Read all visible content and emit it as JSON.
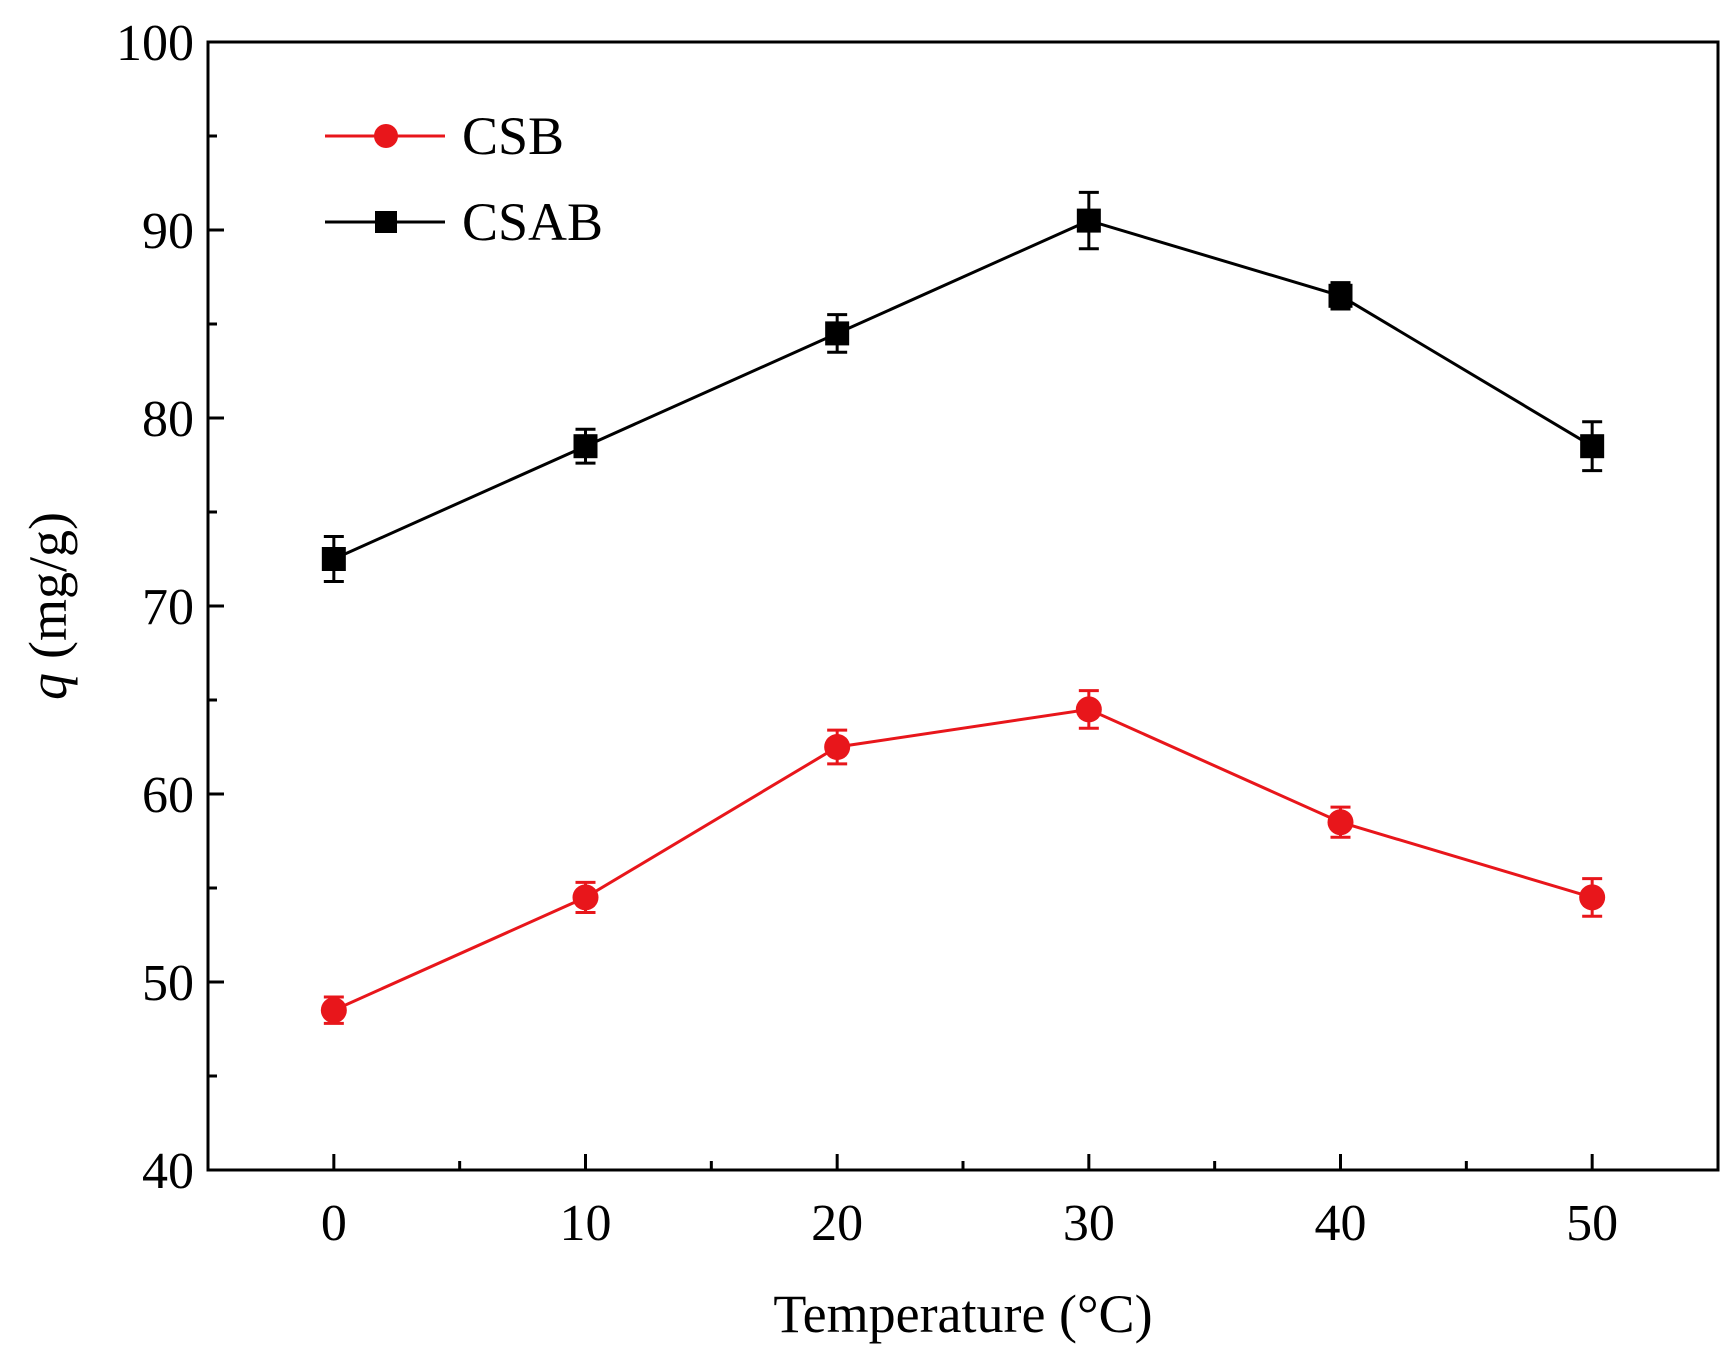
{
  "chart_data": {
    "type": "line",
    "title": "",
    "xlabel": "Temperature (°C)",
    "ylabel_symbol": "q",
    "ylabel_unit": "(mg/g)",
    "x": [
      0,
      10,
      20,
      30,
      40,
      50
    ],
    "xlim": [
      -5,
      55
    ],
    "ylim": [
      40,
      100
    ],
    "x_ticks": [
      0,
      10,
      20,
      30,
      40,
      50
    ],
    "x_tick_labels": [
      "0",
      "10",
      "20",
      "30",
      "40",
      "50"
    ],
    "y_ticks": [
      40,
      50,
      60,
      70,
      80,
      90,
      100
    ],
    "y_tick_labels": [
      "40",
      "50",
      "60",
      "70",
      "80",
      "90",
      "100"
    ],
    "x_minor_ticks": [
      5,
      15,
      25,
      35,
      45
    ],
    "y_minor_ticks": [
      45,
      55,
      65,
      75,
      85,
      95
    ],
    "grid": false,
    "legend_position": "top-left",
    "series": [
      {
        "name": "CSB",
        "color": "#e8161b",
        "marker": "circle",
        "values": [
          48.5,
          54.5,
          62.5,
          64.5,
          58.5,
          54.5
        ],
        "errors": [
          0.7,
          0.8,
          0.9,
          1.0,
          0.8,
          1.0
        ]
      },
      {
        "name": "CSAB",
        "color": "#000000",
        "marker": "square",
        "values": [
          72.5,
          78.5,
          84.5,
          90.5,
          86.5,
          78.5
        ],
        "errors": [
          1.2,
          0.9,
          1.0,
          1.5,
          0.7,
          1.3
        ]
      }
    ]
  }
}
